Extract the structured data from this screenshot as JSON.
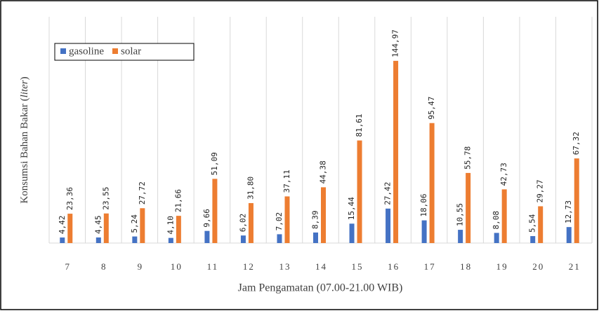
{
  "chart_data": {
    "type": "bar",
    "ylabel_parts": [
      "Konsumsi Bahan Bakar (",
      "liter",
      ")"
    ],
    "xlabel": "Jam Pengamatan (07.00-21.00 WIB)",
    "categories": [
      "7",
      "8",
      "9",
      "10",
      "11",
      "12",
      "13",
      "14",
      "15",
      "16",
      "17",
      "18",
      "19",
      "20",
      "21"
    ],
    "series": [
      {
        "name": "gasoline",
        "color": "#4472c4",
        "values": [
          4.42,
          4.45,
          5.24,
          4.1,
          9.66,
          6.02,
          7.02,
          8.39,
          15.44,
          27.42,
          18.06,
          10.55,
          8.08,
          5.54,
          12.73
        ],
        "value_labels": [
          "4,42",
          "4,45",
          "5,24",
          "4,10",
          "9,66",
          "6,02",
          "7,02",
          "8,39",
          "15,44",
          "27,42",
          "18,06",
          "10,55",
          "8,08",
          "5,54",
          "12,73"
        ]
      },
      {
        "name": "solar",
        "color": "#ed7d31",
        "values": [
          23.36,
          23.55,
          27.72,
          21.66,
          51.09,
          31.8,
          37.11,
          44.38,
          81.61,
          144.97,
          95.47,
          55.78,
          42.73,
          29.27,
          67.32
        ],
        "value_labels": [
          "23,36",
          "23,55",
          "27,72",
          "21,66",
          "51,09",
          "31,80",
          "37,11",
          "44,38",
          "81,61",
          "144,97",
          "95,47",
          "55,78",
          "42,73",
          "29,27",
          "67,32"
        ]
      }
    ],
    "ylim": [
      0,
      180
    ],
    "grid": true,
    "legend": "top-left"
  }
}
